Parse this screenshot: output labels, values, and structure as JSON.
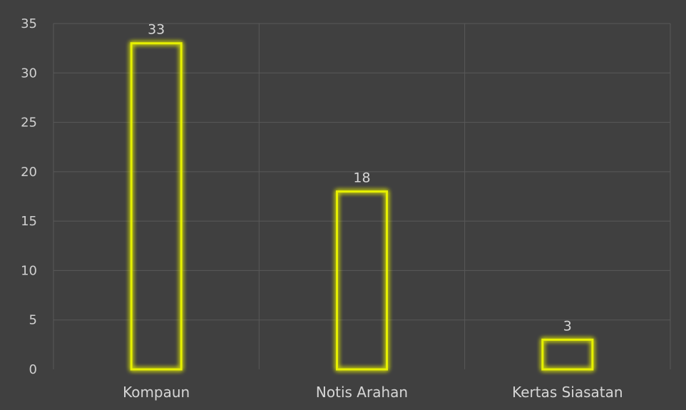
{
  "chart_data": {
    "type": "bar",
    "title": "",
    "xlabel": "",
    "ylabel": "",
    "categories": [
      "Kompaun",
      "Notis Arahan",
      "Kertas Siasatan"
    ],
    "values": [
      33,
      18,
      3
    ],
    "data_labels": [
      "33",
      "18",
      "3"
    ],
    "ylim": [
      0,
      35
    ],
    "yticks": [
      "0",
      "5",
      "10",
      "15",
      "20",
      "25",
      "30",
      "35"
    ],
    "grid": true,
    "legend": "none",
    "bar_style": "outline-glow",
    "colors": {
      "background": "#404040",
      "bar_outline": "#e6f000",
      "bar_glow": "#c8d400",
      "gridline": "#595959",
      "text": "#d6d6d6"
    }
  }
}
